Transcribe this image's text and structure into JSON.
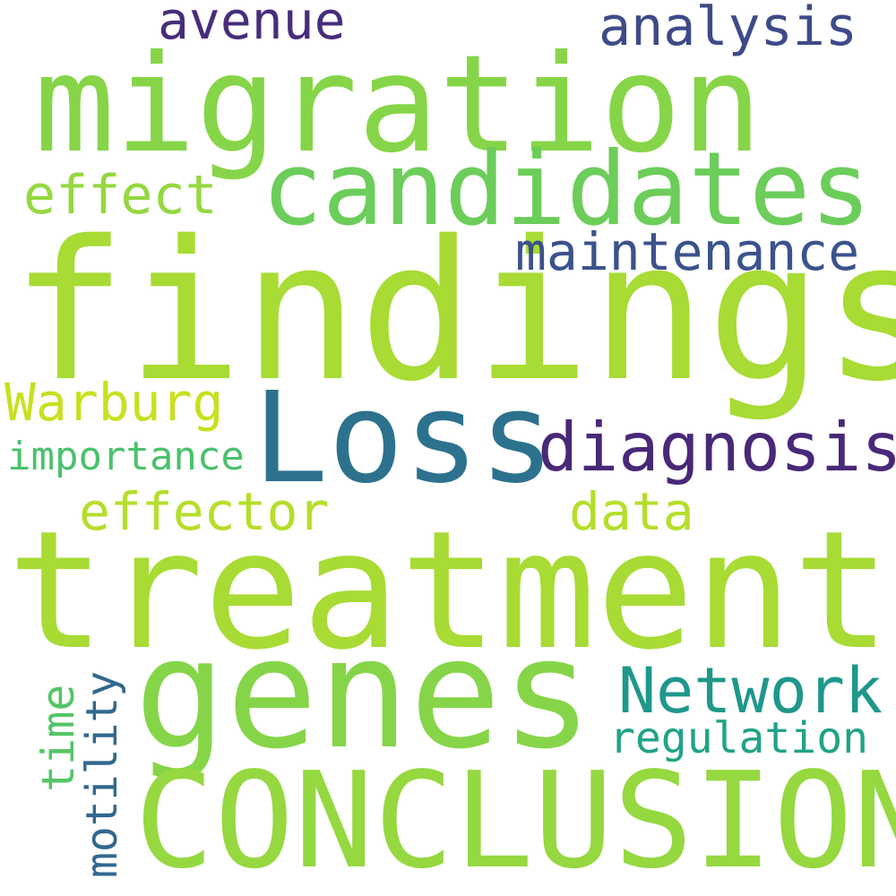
{
  "words": [
    {
      "key": "findings",
      "text": "findings",
      "color": "#a8db34"
    },
    {
      "key": "treatment",
      "text": "treatment",
      "color": "#a8db34"
    },
    {
      "key": "migration",
      "text": "migration",
      "color": "#86d549"
    },
    {
      "key": "genes",
      "text": "genes",
      "color": "#86d549"
    },
    {
      "key": "candidates",
      "text": "candidates",
      "color": "#6ccd5a"
    },
    {
      "key": "loss",
      "text": "Loss",
      "color": "#2c728e"
    },
    {
      "key": "conclusion",
      "text": "CONCLUSION",
      "color": "#95d840"
    },
    {
      "key": "diagnosis",
      "text": "diagnosis",
      "color": "#482878"
    },
    {
      "key": "network",
      "text": "Network",
      "color": "#1f978b"
    },
    {
      "key": "maintenance",
      "text": "maintenance",
      "color": "#3b528b"
    },
    {
      "key": "analysis",
      "text": "analysis",
      "color": "#3e4a89"
    },
    {
      "key": "avenue",
      "text": "avenue",
      "color": "#472d7b"
    },
    {
      "key": "effect",
      "text": "effect",
      "color": "#95d840"
    },
    {
      "key": "warburg",
      "text": "Warburg",
      "color": "#c8e020"
    },
    {
      "key": "effector",
      "text": "effector",
      "color": "#b5de2b"
    },
    {
      "key": "data",
      "text": "data",
      "color": "#b5de2b"
    },
    {
      "key": "importance",
      "text": "importance",
      "color": "#4ac16d"
    },
    {
      "key": "regulation",
      "text": "regulation",
      "color": "#20a386"
    },
    {
      "key": "motility",
      "text": "motility",
      "color": "#31688e"
    },
    {
      "key": "time",
      "text": "time",
      "color": "#54c568"
    }
  ]
}
